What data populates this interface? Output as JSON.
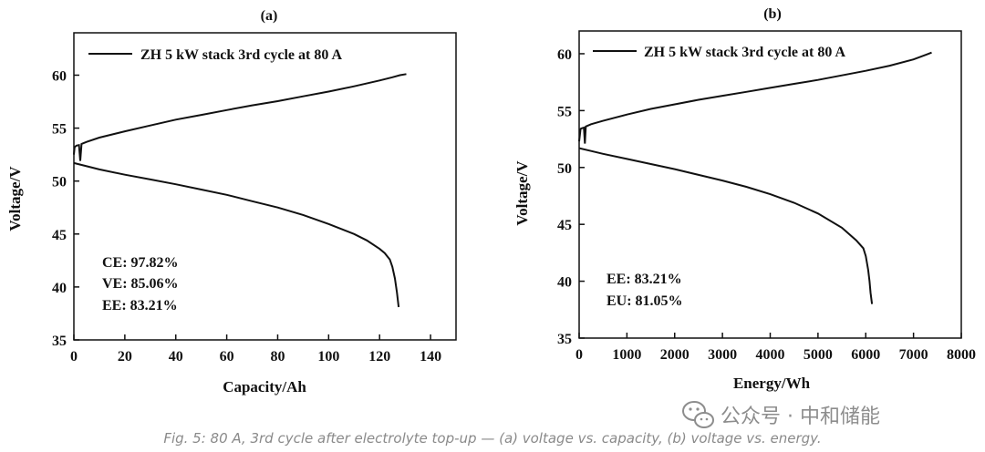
{
  "figure": {
    "caption": "Fig. 5: 80 A, 3rd cycle after electrolyte top-up — (a) voltage vs. capacity, (b) voltage vs. energy.",
    "watermark": "公众号 · 中和储能"
  },
  "chart_data": [
    {
      "type": "line",
      "panel_label": "(a)",
      "xlabel": "Capacity/Ah",
      "ylabel": "Voltage/V",
      "xlim": [
        0,
        150
      ],
      "ylim": [
        35,
        64
      ],
      "xticks": [
        0,
        20,
        40,
        60,
        80,
        100,
        120,
        140
      ],
      "yticks": [
        35,
        40,
        45,
        50,
        55,
        60
      ],
      "grid": false,
      "legend": {
        "placement": "top-left",
        "entries": [
          "ZH 5 kW stack 3rd cycle at 80 A"
        ]
      },
      "annotations": [
        "CE: 97.82%",
        "VE: 85.06%",
        "EE: 83.21%"
      ],
      "series": [
        {
          "name": "ZH 5 kW stack 3rd cycle at 80 A",
          "charge": {
            "x": [
              0,
              0.3,
              1,
              2,
              2.5,
              3,
              5,
              10,
              20,
              30,
              40,
              50,
              60,
              70,
              80,
              90,
              100,
              110,
              120,
              125,
              128,
              130.5
            ],
            "y": [
              52.5,
              53.2,
              53.35,
              53.4,
              51.9,
              53.5,
              53.7,
              54.1,
              54.7,
              55.25,
              55.8,
              56.25,
              56.7,
              57.15,
              57.55,
              58.0,
              58.45,
              58.95,
              59.5,
              59.8,
              60.0,
              60.1
            ]
          },
          "discharge": {
            "x": [
              0,
              5,
              10,
              20,
              30,
              40,
              50,
              60,
              70,
              80,
              90,
              100,
              110,
              115,
              120,
              122,
              124,
              125,
              126,
              126.8,
              127.5
            ],
            "y": [
              51.7,
              51.4,
              51.1,
              50.6,
              50.15,
              49.7,
              49.2,
              48.7,
              48.1,
              47.5,
              46.8,
              45.95,
              45.0,
              44.4,
              43.6,
              43.2,
              42.6,
              41.9,
              40.8,
              39.5,
              38.1
            ]
          }
        }
      ]
    },
    {
      "type": "line",
      "panel_label": "(b)",
      "xlabel": "Energy/Wh",
      "ylabel": "Voltage/V",
      "xlim": [
        0,
        8000
      ],
      "ylim": [
        35,
        62
      ],
      "xticks": [
        0,
        1000,
        2000,
        3000,
        4000,
        5000,
        6000,
        7000,
        8000
      ],
      "yticks": [
        35,
        40,
        45,
        50,
        55,
        60
      ],
      "grid": false,
      "legend": {
        "placement": "top-left",
        "entries": [
          "ZH 5 kW stack 3rd cycle at 80 A"
        ]
      },
      "annotations": [
        "EE: 83.21%",
        "EU: 81.05%"
      ],
      "series": [
        {
          "name": "ZH 5 kW stack 3rd cycle at 80 A",
          "charge": {
            "x": [
              0,
              30,
              60,
              100,
              120,
              140,
              250,
              500,
              1000,
              1500,
              2000,
              2500,
              3000,
              3500,
              4000,
              4500,
              5000,
              5500,
              6000,
              6500,
              7000,
              7380
            ],
            "y": [
              52.3,
              53.4,
              53.45,
              53.5,
              52.1,
              53.6,
              53.8,
              54.1,
              54.65,
              55.15,
              55.55,
              55.95,
              56.3,
              56.65,
              57.0,
              57.35,
              57.7,
              58.1,
              58.5,
              58.95,
              59.5,
              60.1
            ]
          },
          "discharge": {
            "x": [
              0,
              250,
              500,
              1000,
              1500,
              2000,
              2500,
              3000,
              3500,
              4000,
              4500,
              5000,
              5500,
              5800,
              5950,
              6000,
              6050,
              6080,
              6100,
              6130
            ],
            "y": [
              51.7,
              51.45,
              51.2,
              50.75,
              50.3,
              49.85,
              49.35,
              48.85,
              48.3,
              47.65,
              46.9,
              45.95,
              44.7,
              43.6,
              42.9,
              42.2,
              41.0,
              40.0,
              39.0,
              38.0
            ]
          }
        }
      ]
    }
  ]
}
